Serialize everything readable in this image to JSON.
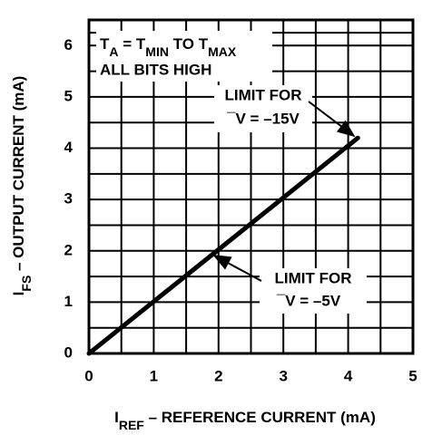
{
  "chart_data": {
    "type": "line",
    "x_label": [
      "I",
      "REF",
      " – REFERENCE CURRENT (mA)"
    ],
    "y_label": [
      "I",
      "FS",
      " – OUTPUT CURRENT (mA)"
    ],
    "xlim": [
      0,
      5
    ],
    "xticks": [
      0,
      1,
      2,
      3,
      4,
      5
    ],
    "ylim": [
      0,
      6.5
    ],
    "yticks": [
      0,
      1,
      2,
      3,
      4,
      5,
      6
    ],
    "grid": true,
    "series": [
      {
        "color": "#000000",
        "x": [
          0,
          4.15
        ],
        "values": [
          0,
          4.2
        ]
      }
    ],
    "annotations": {
      "condition": [
        "T",
        "A",
        " = T",
        "MIN",
        " TO T",
        "MAX"
      ],
      "bits": "ALL BITS HIGH",
      "limit_15": [
        "LIMIT FOR",
        "¯V = –15V"
      ],
      "limit_5": [
        "LIMIT FOR",
        "¯V = –5V"
      ]
    }
  }
}
